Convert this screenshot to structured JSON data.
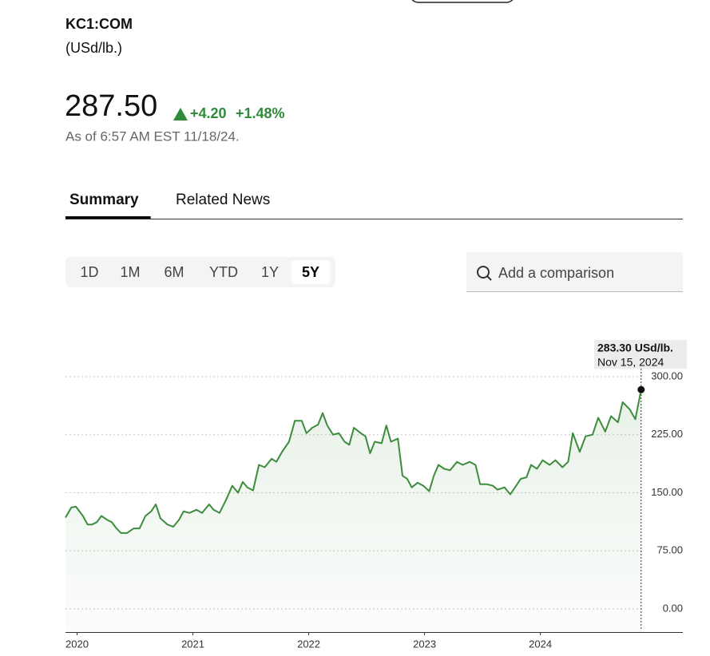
{
  "header": {
    "symbol": "KC1:COM",
    "unit": "(USd/lb.)",
    "price": "287.50",
    "change": "+4.20",
    "change_pct": "+1.48%",
    "timestamp": "As of 6:57 AM EST 11/18/24."
  },
  "tabs": [
    "Summary",
    "Related News"
  ],
  "selected_tab": "Summary",
  "ranges": [
    "1D",
    "1M",
    "6M",
    "YTD",
    "1Y",
    "5Y"
  ],
  "selected_range": "5Y",
  "search_placeholder": "Add a comparison",
  "chart_data": {
    "type": "line",
    "color": "#3d8b3d",
    "grid": true,
    "x": [
      2019.9,
      2019.95,
      2019.99,
      2020.05,
      2020.09,
      2020.13,
      2020.17,
      2020.21,
      2020.26,
      2020.3,
      2020.34,
      2020.38,
      2020.43,
      2020.49,
      2020.54,
      2020.59,
      2020.64,
      2020.68,
      2020.72,
      2020.78,
      2020.83,
      2020.88,
      2020.92,
      2020.97,
      2021.03,
      2021.08,
      2021.14,
      2021.18,
      2021.23,
      2021.29,
      2021.34,
      2021.39,
      2021.43,
      2021.47,
      2021.52,
      2021.57,
      2021.62,
      2021.68,
      2021.72,
      2021.77,
      2021.83,
      2021.88,
      2021.94,
      2021.98,
      2022.03,
      2022.08,
      2022.12,
      2022.16,
      2022.21,
      2022.26,
      2022.31,
      2022.35,
      2022.39,
      2022.45,
      2022.49,
      2022.53,
      2022.57,
      2022.63,
      2022.67,
      2022.71,
      2022.77,
      2022.81,
      2022.85,
      2022.89,
      2022.94,
      2022.99,
      2023.04,
      2023.08,
      2023.12,
      2023.17,
      2023.22,
      2023.28,
      2023.33,
      2023.39,
      2023.44,
      2023.48,
      2023.54,
      2023.59,
      2023.63,
      2023.69,
      2023.74,
      2023.79,
      2023.83,
      2023.88,
      2023.92,
      2023.97,
      2024.02,
      2024.08,
      2024.13,
      2024.19,
      2024.24,
      2024.28,
      2024.34,
      2024.39,
      2024.45,
      2024.5,
      2024.56,
      2024.61,
      2024.67,
      2024.71,
      2024.77,
      2024.82,
      2024.87
    ],
    "values": [
      118,
      131,
      132,
      120,
      109,
      109,
      112,
      120,
      115,
      112,
      104,
      98,
      98,
      104,
      104,
      120,
      126,
      135,
      117,
      109,
      106,
      115,
      126,
      124,
      128,
      124,
      135,
      128,
      124,
      142,
      159,
      150,
      164,
      157,
      153,
      186,
      183,
      194,
      190,
      203,
      216,
      243,
      243,
      227,
      234,
      238,
      253,
      237,
      225,
      227,
      216,
      212,
      234,
      227,
      223,
      201,
      216,
      214,
      237,
      216,
      220,
      172,
      168,
      157,
      163,
      159,
      152,
      172,
      186,
      181,
      179,
      190,
      186,
      190,
      186,
      161,
      161,
      159,
      154,
      157,
      148,
      159,
      168,
      170,
      186,
      181,
      192,
      186,
      192,
      183,
      190,
      227,
      203,
      223,
      225,
      247,
      229,
      249,
      241,
      267,
      258,
      245,
      283.3
    ],
    "xlim": [
      2019.9,
      2025.23
    ],
    "ylim": [
      -30,
      300
    ],
    "xticks": [
      2020,
      2021,
      2022,
      2023,
      2024
    ],
    "yticks": [
      {
        "value": 0,
        "label": "0.00"
      },
      {
        "value": 75,
        "label": "75.00"
      },
      {
        "value": 150,
        "label": "150.00"
      },
      {
        "value": 225,
        "label": "225.00"
      },
      {
        "value": 300,
        "label": "300.00"
      }
    ],
    "tooltip": {
      "value_label": "283.30 USd/lb.",
      "date": "Nov 15, 2024"
    }
  }
}
